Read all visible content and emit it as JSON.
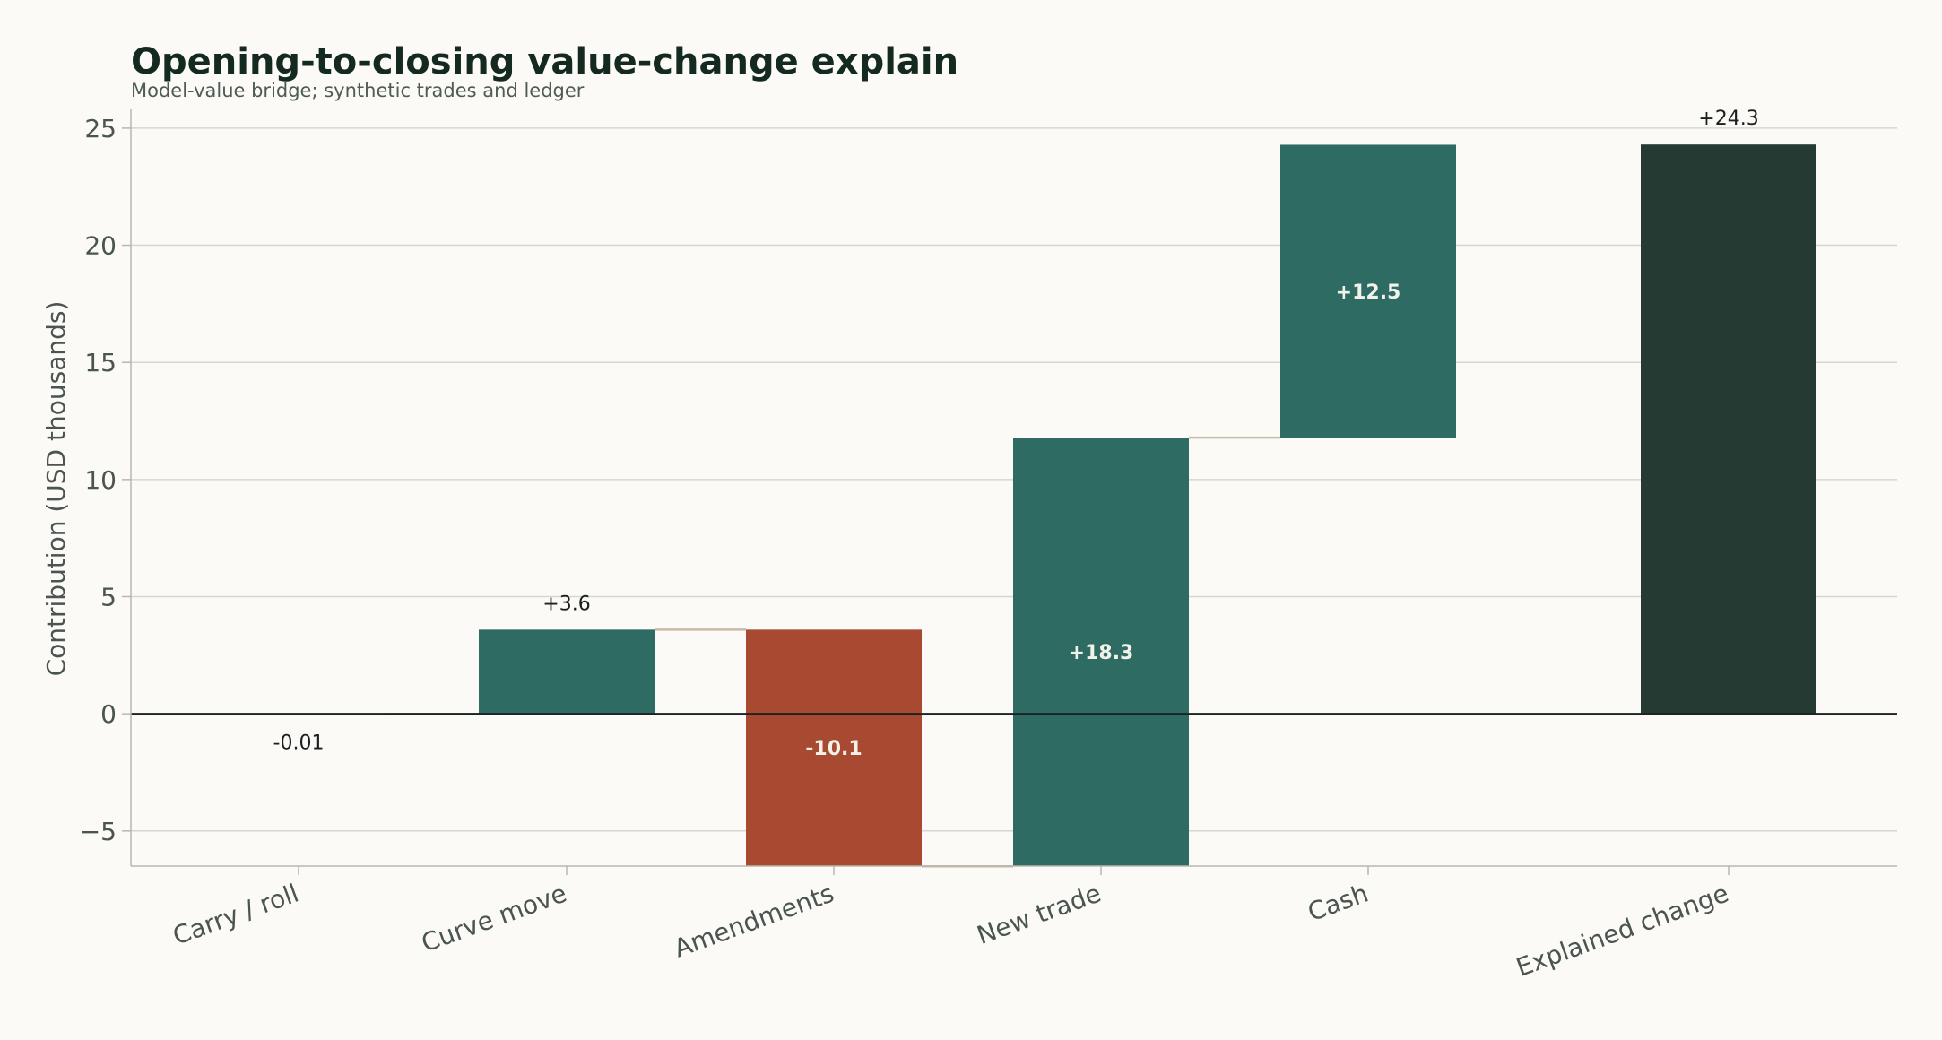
{
  "chart_data": {
    "type": "bar",
    "subtype": "waterfall",
    "title": "Opening-to-closing value-change explain",
    "subtitle": "Model-value bridge; synthetic trades and ledger",
    "ylabel": "Contribution (USD thousands)",
    "xlabel": "",
    "ylim": [
      -6.5,
      25.8
    ],
    "yticks": [
      -5,
      0,
      5,
      10,
      15,
      20,
      25
    ],
    "ytick_labels": [
      "−5",
      "0",
      "5",
      "10",
      "15",
      "20",
      "25"
    ],
    "grid": true,
    "categories": [
      "Carry / roll",
      "Curve move",
      "Amendments",
      "New trade",
      "Cash",
      "Explained change"
    ],
    "values": [
      -0.01,
      3.6,
      -10.1,
      18.3,
      12.5,
      24.3
    ],
    "is_total": [
      false,
      false,
      false,
      false,
      false,
      true
    ],
    "value_labels": [
      "-0.01",
      "+3.6",
      "-10.1",
      "+18.3",
      "+12.5",
      "+24.3"
    ],
    "label_inside": [
      false,
      false,
      true,
      true,
      true,
      false
    ],
    "colors": {
      "positive": "#2e6b63",
      "negative": "#a84a32",
      "total": "#243a33",
      "connector": "#c8bba8",
      "grid": "#d8d6d0",
      "axis": "#b9b7b0",
      "zero_line": "#1b2320"
    }
  }
}
